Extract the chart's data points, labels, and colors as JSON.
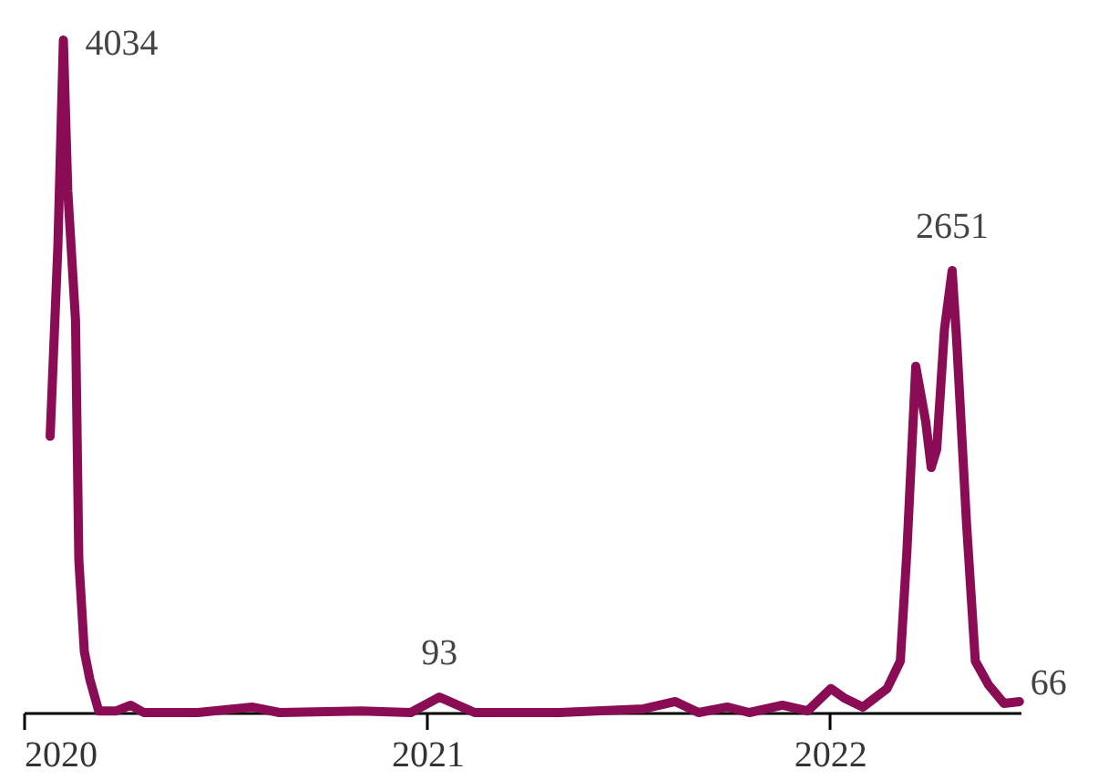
{
  "chart_data": {
    "type": "line",
    "x": [
      "2020-01-25",
      "2020-02-01",
      "2020-02-06",
      "2020-02-10",
      "2020-02-17",
      "2020-02-20",
      "2020-02-25",
      "2020-03-01",
      "2020-03-09",
      "2020-03-25",
      "2020-04-07",
      "2020-04-19",
      "2020-06-07",
      "2020-07-26",
      "2020-08-20",
      "2020-11-02",
      "2020-12-17",
      "2021-01-12",
      "2021-02-13",
      "2021-05-01",
      "2021-07-16",
      "2021-08-14",
      "2021-09-04",
      "2021-09-30",
      "2021-10-20",
      "2021-11-19",
      "2021-12-12",
      "2022-01-02",
      "2022-01-14",
      "2022-01-31",
      "2022-02-22",
      "2022-03-06",
      "2022-03-12",
      "2022-03-20",
      "2022-03-29",
      "2022-04-03",
      "2022-04-08",
      "2022-04-15",
      "2022-04-22",
      "2022-04-26",
      "2022-05-05",
      "2022-05-13",
      "2022-05-25",
      "2022-06-08",
      "2022-06-22"
    ],
    "series": [
      {
        "color": "#8a0c55",
        "values": [
          1657,
          2795,
          4034,
          3127,
          2353,
          917,
          365,
          199,
          10,
          10,
          44,
          0,
          0,
          33,
          0,
          10,
          0,
          93,
          0,
          0,
          22,
          66,
          0,
          33,
          0,
          44,
          10,
          144,
          88,
          33,
          144,
          309,
          972,
          2077,
          1746,
          1470,
          1580,
          2298,
          2651,
          2243,
          1138,
          309,
          166,
          55,
          66
        ],
        "value_labels": [
          null,
          null,
          "4034",
          null,
          null,
          null,
          null,
          null,
          null,
          null,
          null,
          null,
          null,
          null,
          null,
          null,
          null,
          "93",
          null,
          null,
          null,
          null,
          null,
          null,
          null,
          null,
          null,
          null,
          null,
          null,
          null,
          null,
          null,
          null,
          null,
          null,
          null,
          null,
          "2651",
          null,
          null,
          null,
          null,
          null,
          "66"
        ]
      }
    ],
    "xlim": [
      "2020-01-01",
      "2022-06-23"
    ],
    "xticks": [
      "2020",
      "2021",
      "2022"
    ],
    "tick_labels": "x",
    "grid": false,
    "legend": false
  }
}
